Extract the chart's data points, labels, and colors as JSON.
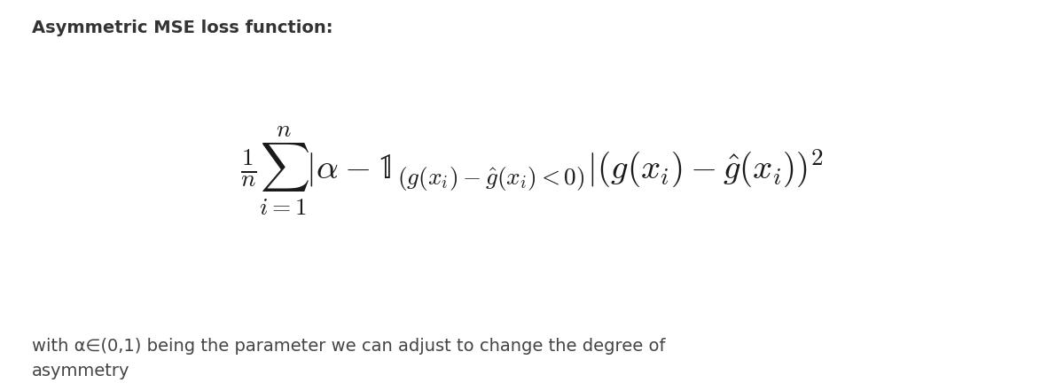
{
  "title": "Asymmetric MSE loss function:",
  "title_fontsize": 14,
  "title_fontweight": "bold",
  "title_color": "#333333",
  "formula": "$\\frac{1}{n} \\sum_{i=1}^{n} |\\alpha - \\mathbb{1}_{(g(x_i)-\\hat{g}(x_i)<0)}|(g(x_i) - \\hat{g}(x_i))^2$",
  "formula_fontsize": 28,
  "formula_color": "#1a1a1a",
  "caption": "with α∈(0,1) being the parameter we can adjust to change the degree of\nasymmetry",
  "caption_fontsize": 14,
  "caption_color": "#444444",
  "background_color": "#ffffff",
  "fig_width": 12.0,
  "fig_height": 4.41,
  "dpi": 100
}
